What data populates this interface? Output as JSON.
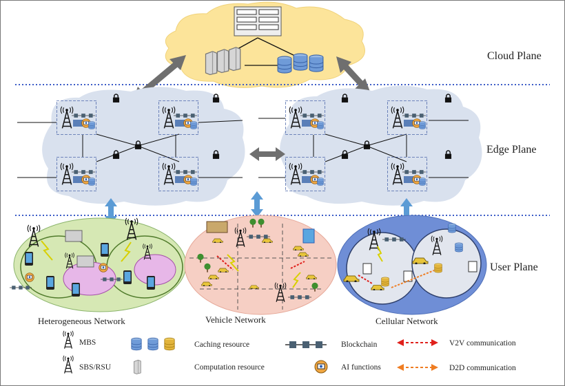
{
  "planes": {
    "cloud": "Cloud Plane",
    "edge": "Edge Plane",
    "user": "User Plane"
  },
  "networks": {
    "heterogeneous": "Heterogeneous Network",
    "vehicle": "Vehicle Network",
    "cellular": "Cellular Network"
  },
  "legend": {
    "mbs": "MBS",
    "sbs_rsu": "SBS/RSU",
    "caching": "Caching resource",
    "computation": "Computation resource",
    "blockchain": "Blockchain",
    "ai": "AI functions",
    "v2v": "V2V communication",
    "d2d": "D2D communication"
  },
  "colors": {
    "cloud_fill": "#fce49a",
    "edge_cloud_fill": "#d9e1ee",
    "separator": "#3b5bc7",
    "arrow_gray": "#6f6f6f",
    "arrow_blue": "#5b9bd5",
    "heterogeneous_fill": "#d6e8b4",
    "vehicle_fill": "#f6cfc4",
    "cellular_fill": "#6f8ed6",
    "v2v": "#e0201b",
    "d2d": "#ef7d22"
  }
}
